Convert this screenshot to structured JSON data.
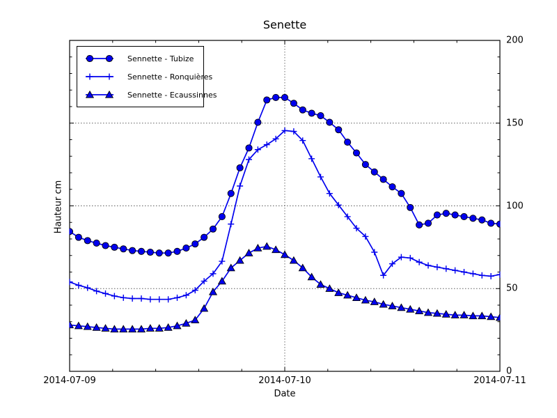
{
  "figure": {
    "title": "Senette",
    "xlabel": "Date",
    "ylabel": "Hauteur cm"
  },
  "chart_data": {
    "type": "line",
    "title": "Senette",
    "xlabel": "Date",
    "ylabel": "Hauteur cm",
    "ylim": [
      0,
      200
    ],
    "xlim_hours": [
      0,
      48
    ],
    "x_start": "2014-07-09 00:00",
    "x_interval_hours": 1,
    "grid": {
      "style": "dotted",
      "horizontal_at": [
        50,
        100,
        150
      ],
      "vertical_at_hours": [
        24
      ]
    },
    "minor_ticks_per_major": 5,
    "xticks": [
      {
        "label": "2014-07-09",
        "hour": 0
      },
      {
        "label": "2014-07-10",
        "hour": 24
      },
      {
        "label": "2014-07-11",
        "hour": 48
      }
    ],
    "yticks": [
      {
        "label": "0",
        "value": 0
      },
      {
        "label": "50",
        "value": 50
      },
      {
        "label": "100",
        "value": 100
      },
      {
        "label": "150",
        "value": 150
      },
      {
        "label": "200",
        "value": 200
      }
    ],
    "legend": {
      "position": "upper-left",
      "border": true
    },
    "colors": {
      "line": "#0000EE",
      "marker_edge": "#000000",
      "axes": "#000000",
      "grid": "#333333"
    },
    "series": [
      {
        "name": "Sennette - Tubize",
        "marker": "circle",
        "values": [
          84.5,
          81,
          79,
          77.5,
          76,
          75,
          74,
          73,
          72.5,
          72,
          71.5,
          71.5,
          72.5,
          74.5,
          77,
          81,
          86,
          93.5,
          107.5,
          123,
          135,
          150.5,
          164,
          165.5,
          165.5,
          162,
          158,
          156,
          154.5,
          150.5,
          146,
          138.5,
          132,
          125,
          120.5,
          116,
          111.5,
          107.5,
          99,
          88.5,
          89.5,
          94.5,
          95.5,
          94.5,
          93.5,
          92.5,
          91.5,
          89.5,
          89
        ]
      },
      {
        "name": "Sennette - Ronquières",
        "marker": "plus",
        "values": [
          54,
          52,
          50.5,
          48.5,
          47,
          45.5,
          44.5,
          44,
          44,
          43.5,
          43.5,
          43.5,
          44.5,
          46,
          49,
          54.5,
          59,
          66.5,
          89,
          112,
          128,
          134,
          137,
          140.5,
          145.5,
          145,
          139.5,
          128.5,
          117.5,
          107.5,
          100.5,
          93.5,
          86.5,
          81.5,
          72,
          58,
          65,
          69,
          68.5,
          66,
          64,
          63,
          62,
          61,
          60,
          59,
          58,
          57.5,
          58.5
        ]
      },
      {
        "name": "Sennette - Ecaussinnes",
        "marker": "triangle-up",
        "values": [
          28,
          27.5,
          27,
          26.5,
          26,
          25.5,
          25.5,
          25.5,
          25.5,
          26,
          26,
          26.5,
          27.5,
          29,
          31,
          38,
          48,
          54.5,
          62.5,
          67,
          71.5,
          74.5,
          75.5,
          73.5,
          70.5,
          67,
          62.5,
          57,
          52.5,
          50,
          47.5,
          46,
          44.5,
          43,
          42,
          40.5,
          39.5,
          38.5,
          37.5,
          36.5,
          35.5,
          35,
          34.5,
          34,
          34,
          33.5,
          33.5,
          33,
          32.5
        ]
      }
    ]
  }
}
